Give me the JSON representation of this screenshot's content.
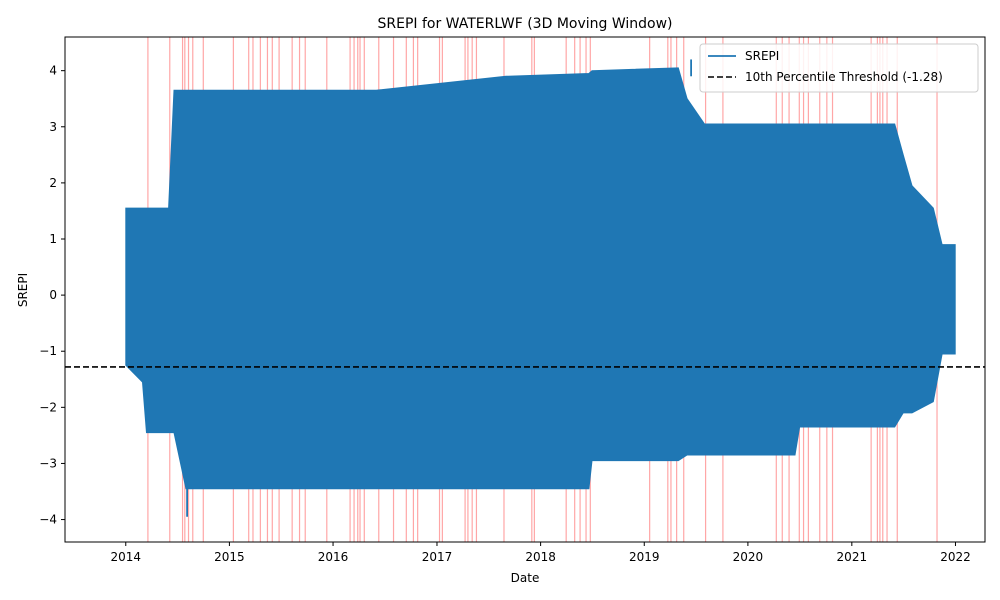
{
  "chart_data": {
    "type": "line",
    "title": "SREPI for WATERLWF (3D Moving Window)",
    "xlabel": "Date",
    "ylabel": "SREPI",
    "xlim": [
      "2013-06-01",
      "2022-04-15"
    ],
    "ylim": [
      -4.4,
      4.6
    ],
    "x_ticks": [
      "2014",
      "2015",
      "2016",
      "2017",
      "2018",
      "2019",
      "2020",
      "2021",
      "2022"
    ],
    "y_ticks": [
      -4,
      -3,
      -2,
      -1,
      0,
      1,
      2,
      3,
      4
    ],
    "grid": false,
    "legend_position": "top-right",
    "colors": {
      "series": "#1f77b4",
      "threshold": "#000000",
      "drought_span": "#ff0000"
    },
    "series": [
      {
        "name": "SREPI",
        "note_envelope": true,
        "envelope": [
          {
            "x": "2014-01-01",
            "low": -1.25,
            "high": 1.55
          },
          {
            "x": "2014-03-01",
            "low": -1.55,
            "high": 1.55
          },
          {
            "x": "2014-03-15",
            "low": -2.45,
            "high": 1.55
          },
          {
            "x": "2014-06-01",
            "low": -2.45,
            "high": 1.55
          },
          {
            "x": "2014-06-20",
            "low": -2.45,
            "high": 3.65
          },
          {
            "x": "2014-08-01",
            "low": -3.45,
            "high": 3.65
          },
          {
            "x": "2015-06-01",
            "low": -3.45,
            "high": 3.65
          },
          {
            "x": "2016-06-01",
            "low": -3.45,
            "high": 3.65
          },
          {
            "x": "2017-09-01",
            "low": -3.45,
            "high": 3.9
          },
          {
            "x": "2018-06-20",
            "low": -3.45,
            "high": 3.95
          },
          {
            "x": "2018-07-01",
            "low": -2.95,
            "high": 4.0
          },
          {
            "x": "2019-05-01",
            "low": -2.95,
            "high": 4.05
          },
          {
            "x": "2019-06-01",
            "low": -2.85,
            "high": 3.5
          },
          {
            "x": "2019-08-01",
            "low": -2.85,
            "high": 3.05
          },
          {
            "x": "2020-06-15",
            "low": -2.85,
            "high": 3.05
          },
          {
            "x": "2020-07-01",
            "low": -2.35,
            "high": 3.05
          },
          {
            "x": "2021-06-01",
            "low": -2.35,
            "high": 3.05
          },
          {
            "x": "2021-07-01",
            "low": -2.1,
            "high": 2.5
          },
          {
            "x": "2021-08-01",
            "low": -2.1,
            "high": 1.95
          },
          {
            "x": "2021-10-15",
            "low": -1.9,
            "high": 1.55
          },
          {
            "x": "2021-11-15",
            "low": -1.05,
            "high": 0.9
          },
          {
            "x": "2021-12-31",
            "low": -1.05,
            "high": 0.9
          }
        ],
        "spike": {
          "x": "2019-06-15",
          "low": 3.9,
          "high": 4.2
        },
        "min_spike": {
          "x": "2014-08-05",
          "low": -3.95,
          "high": -3.45
        }
      }
    ],
    "threshold": {
      "label": "10th Percentile Threshold (-1.28)",
      "value": -1.28
    },
    "drought_spans": [
      "2014-03-20",
      "2014-06-05",
      "2014-07-20",
      "2014-07-28",
      "2014-08-10",
      "2014-08-25",
      "2014-10-01",
      "2015-01-15",
      "2015-03-10",
      "2015-03-25",
      "2015-04-20",
      "2015-05-15",
      "2015-06-01",
      "2015-06-25",
      "2015-08-10",
      "2015-09-05",
      "2015-09-25",
      "2015-12-10",
      "2016-03-01",
      "2016-03-15",
      "2016-03-28",
      "2016-04-05",
      "2016-04-20",
      "2016-06-10",
      "2016-08-01",
      "2016-09-15",
      "2016-10-10",
      "2016-10-25",
      "2017-01-10",
      "2017-01-20",
      "2017-04-10",
      "2017-04-20",
      "2017-05-05",
      "2017-05-20",
      "2017-08-25",
      "2017-12-01",
      "2017-12-10",
      "2018-04-01",
      "2018-05-01",
      "2018-05-20",
      "2018-06-10",
      "2018-06-25",
      "2019-01-20",
      "2019-03-25",
      "2019-04-05",
      "2019-04-25",
      "2019-05-20",
      "2019-08-05",
      "2019-10-05",
      "2020-04-10",
      "2020-05-01",
      "2020-05-25",
      "2020-06-30",
      "2020-07-15",
      "2020-08-01",
      "2020-09-10",
      "2020-10-05",
      "2020-10-25",
      "2021-03-10",
      "2021-04-01",
      "2021-04-10",
      "2021-04-20",
      "2021-05-05",
      "2021-06-10",
      "2021-10-28"
    ]
  }
}
